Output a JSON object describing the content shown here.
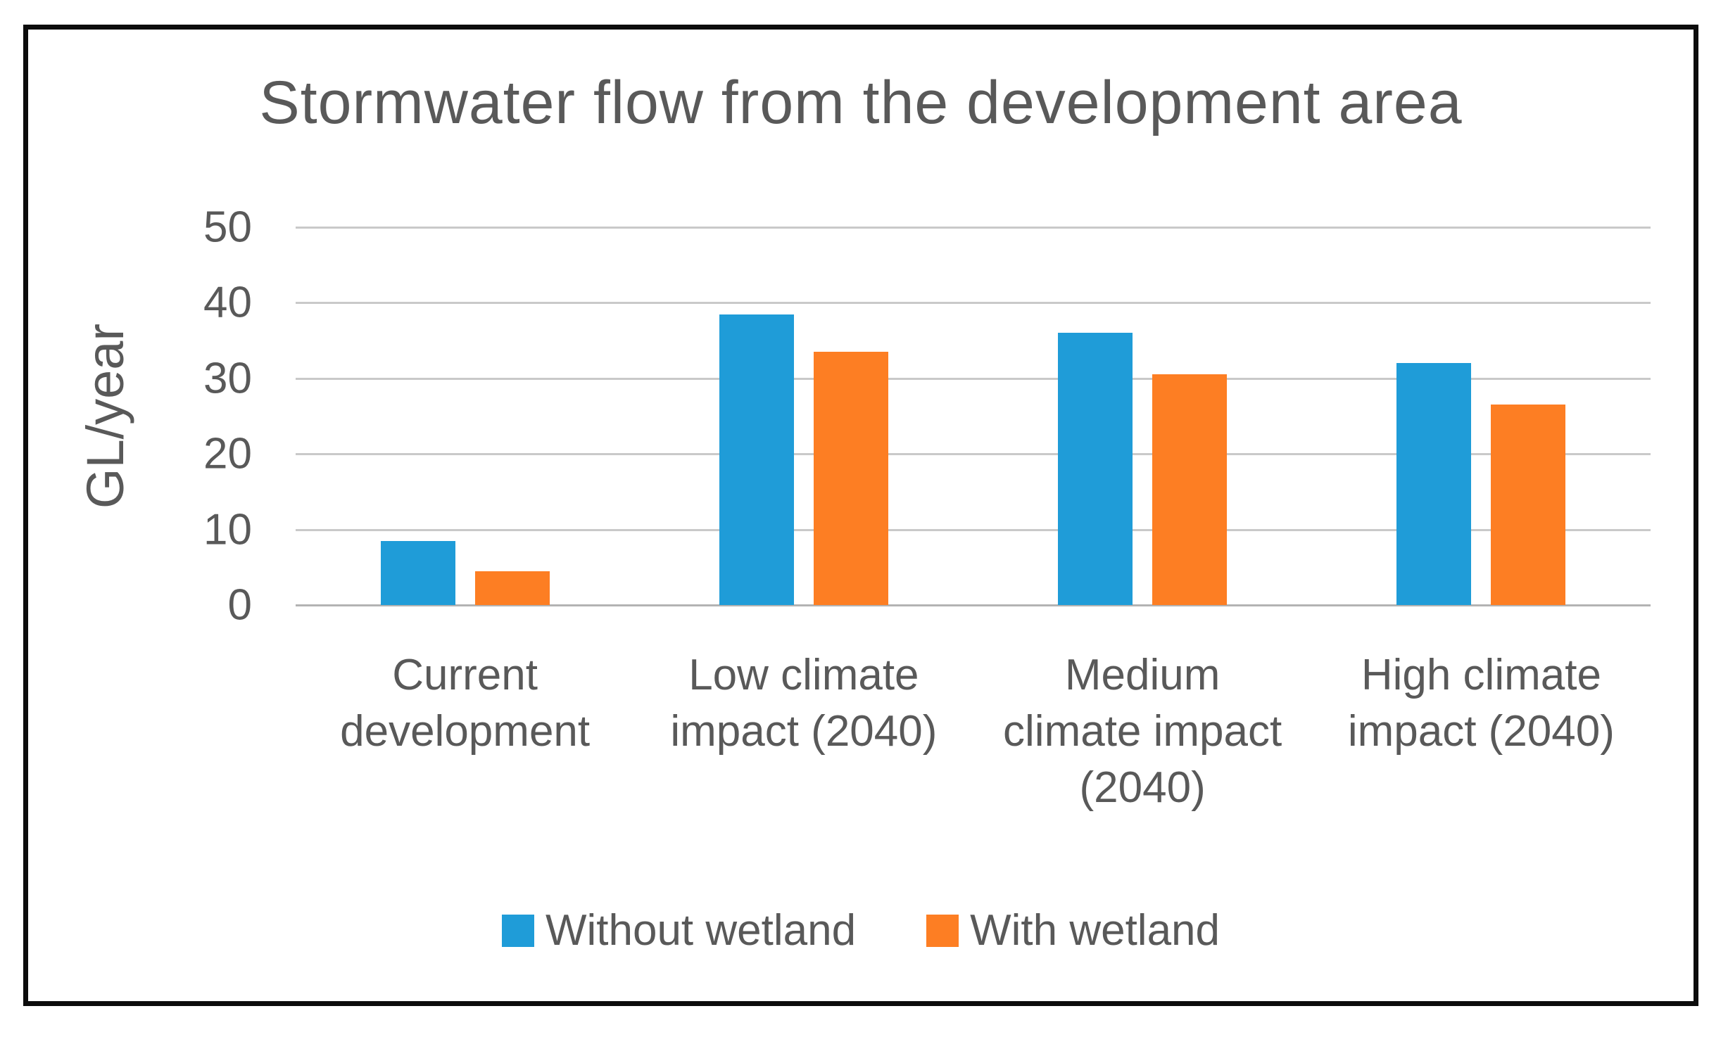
{
  "chart_data": {
    "type": "bar",
    "title": "Stormwater flow from the development area",
    "xlabel": "",
    "ylabel": "GL/year",
    "ylim": [
      0,
      50
    ],
    "yticks": [
      0,
      10,
      20,
      30,
      40,
      50
    ],
    "grid": true,
    "legend_position": "bottom",
    "categories": [
      {
        "label": "Current development",
        "lines": [
          "Current",
          "development"
        ]
      },
      {
        "label": "Low climate impact (2040)",
        "lines": [
          "Low climate",
          "impact (2040)"
        ]
      },
      {
        "label": "Medium climate impact (2040)",
        "lines": [
          "Medium",
          "climate impact",
          "(2040)"
        ]
      },
      {
        "label": "High climate impact (2040)",
        "lines": [
          "High climate",
          "impact (2040)"
        ]
      }
    ],
    "series": [
      {
        "name": "Without wetland",
        "color": "#1f9cd8",
        "values": [
          8.5,
          38.5,
          36,
          32
        ]
      },
      {
        "name": "With wetland",
        "color": "#fd7e23",
        "values": [
          4.5,
          33.5,
          30.5,
          26.5
        ]
      }
    ],
    "colors": {
      "text": "#595959",
      "gridline": "#c9c9c9",
      "axis_line": "#b3b3b3",
      "frame_border": "#0c0c0c",
      "background": "#ffffff"
    }
  }
}
